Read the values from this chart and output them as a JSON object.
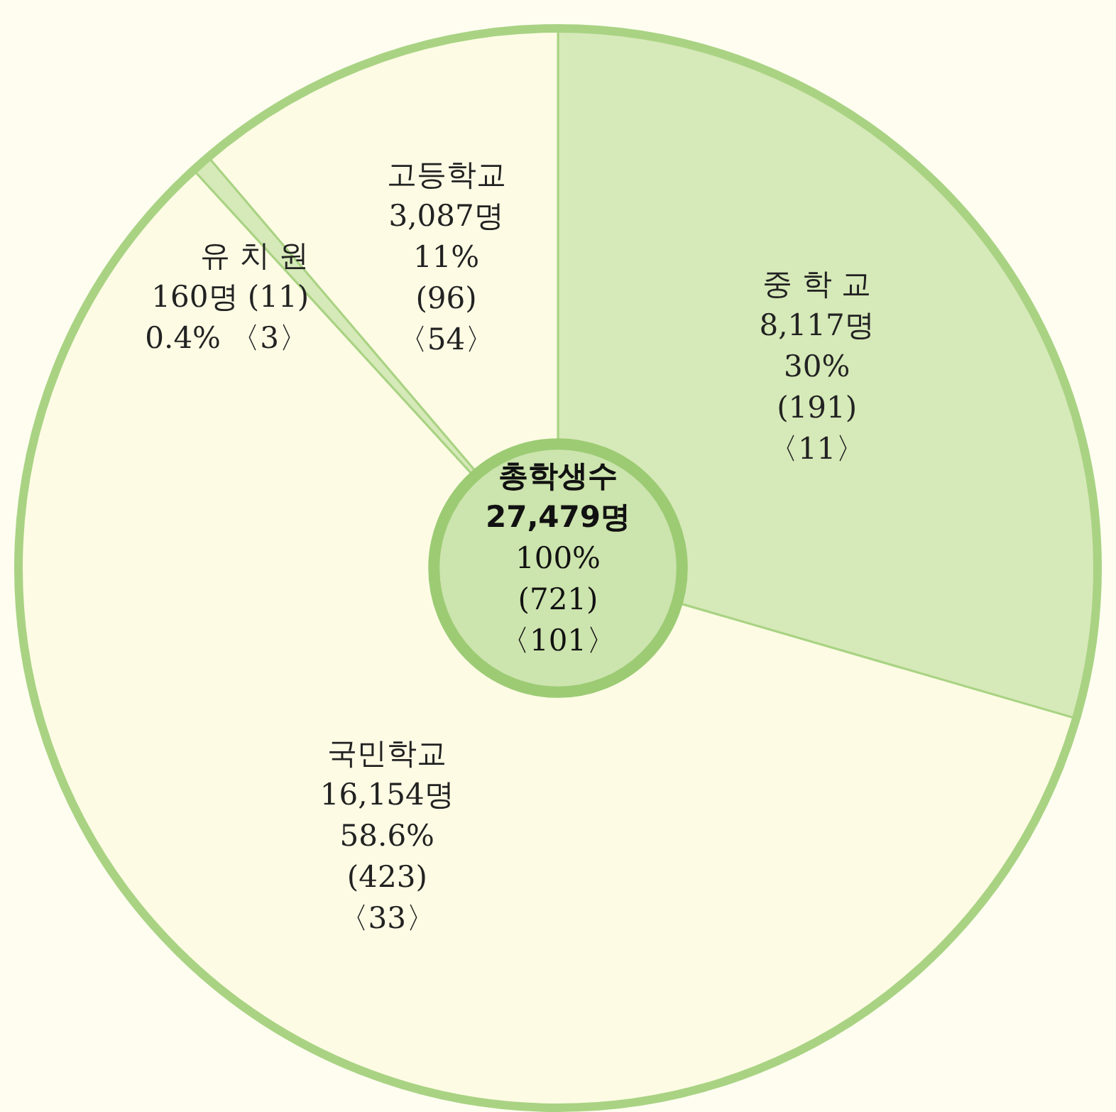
{
  "chart_data": {
    "type": "donut",
    "title": "총학생수",
    "annotations": [
      "27,479명",
      "100%",
      "(721)",
      "〈101〉"
    ],
    "categories": [
      "중 학 교",
      "국민학교",
      "유 치 원",
      "고등학교"
    ],
    "values": [
      8117,
      16154,
      160,
      3087
    ],
    "value_labels": [
      "8,117명\n30%\n(191)\n〈11〉",
      "16,154명\n58.6%\n(423)\n〈33〉",
      "160명 (11)\n0.4% 〈3〉",
      "3,087명\n11%\n(96)\n〈54〉"
    ],
    "colors": [
      "#d6e9b8",
      "#fdfbe4",
      "#d6e9b8",
      "#fdfbe4"
    ]
  }
}
